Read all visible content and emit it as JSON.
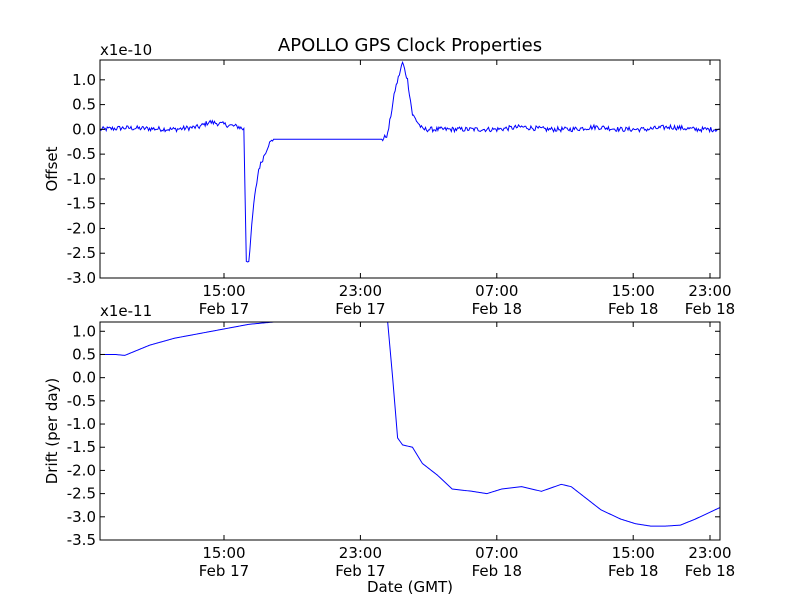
{
  "chart_data": [
    {
      "type": "line",
      "title": "APOLLO GPS Clock Properties",
      "ylabel": "Offset",
      "y_multiplier": "x1e-10",
      "xlabel": "",
      "ylim": [
        -3.0,
        1.4
      ],
      "xlim_hours": [
        11.5,
        24.0
      ],
      "y_ticks": [
        "1.0",
        "0.5",
        "0.0",
        "-0.5",
        "-1.0",
        "-1.5",
        "-2.0",
        "-2.5",
        "-3.0"
      ],
      "y_tick_values": [
        1.0,
        0.5,
        0.0,
        -0.5,
        -1.0,
        -1.5,
        -2.0,
        -2.5,
        -3.0
      ],
      "x_ticks": [
        {
          "hour": 14.0,
          "time": "15:00",
          "date": "Feb 17"
        },
        {
          "hour": 16.75,
          "time": "23:00",
          "date": "Feb 17"
        },
        {
          "hour": 19.5,
          "time": "07:00",
          "date": "Feb 18"
        },
        {
          "hour": 22.25,
          "time": "15:00",
          "date": "Feb 18"
        },
        {
          "hour": 25.0,
          "time": "23:00",
          "date": "Feb 18"
        }
      ],
      "line_color": "#0000ff",
      "noise_amplitude": 0.05,
      "series": [
        {
          "name": "offset",
          "x": [
            11.5,
            12.0,
            13.0,
            13.5,
            13.7,
            14.0,
            14.3,
            14.4,
            14.45,
            14.5,
            14.6,
            14.7,
            14.9,
            15.0,
            15.2,
            15.5,
            16.0,
            16.5,
            17.0,
            17.2,
            17.3,
            17.45,
            17.6,
            17.7,
            17.8,
            18.0,
            18.5,
            19.0,
            19.5,
            20.0,
            20.5,
            21.0,
            21.5,
            22.0,
            22.5,
            23.0,
            23.5,
            24.0
          ],
          "y": [
            0.0,
            0.03,
            0.0,
            0.05,
            0.15,
            0.1,
            0.05,
            0.0,
            -2.65,
            -2.65,
            -1.5,
            -0.8,
            -0.3,
            -0.2,
            -0.2,
            -0.2,
            -0.2,
            -0.2,
            -0.2,
            -0.2,
            -0.1,
            0.8,
            1.35,
            1.0,
            0.3,
            0.0,
            0.0,
            0.0,
            0.0,
            0.05,
            0.0,
            0.0,
            0.05,
            0.0,
            0.0,
            0.05,
            0.0,
            0.0
          ]
        }
      ]
    },
    {
      "type": "line",
      "title": "",
      "ylabel": "Drift (per day)",
      "y_multiplier": "x1e-11",
      "xlabel": "Date (GMT)",
      "ylim": [
        -3.5,
        1.2
      ],
      "xlim_hours": [
        11.5,
        24.0
      ],
      "y_ticks": [
        "1.0",
        "0.5",
        "0.0",
        "-0.5",
        "-1.0",
        "-1.5",
        "-2.0",
        "-2.5",
        "-3.0",
        "-3.5"
      ],
      "y_tick_values": [
        1.0,
        0.5,
        0.0,
        -0.5,
        -1.0,
        -1.5,
        -2.0,
        -2.5,
        -3.0,
        -3.5
      ],
      "x_ticks": [
        {
          "hour": 14.0,
          "time": "15:00",
          "date": "Feb 17"
        },
        {
          "hour": 16.75,
          "time": "23:00",
          "date": "Feb 17"
        },
        {
          "hour": 19.5,
          "time": "07:00",
          "date": "Feb 18"
        },
        {
          "hour": 22.25,
          "time": "15:00",
          "date": "Feb 18"
        },
        {
          "hour": 25.0,
          "time": "23:00",
          "date": "Feb 18"
        }
      ],
      "line_color": "#0000ff",
      "noise_amplitude": 0,
      "series": [
        {
          "name": "drift",
          "x": [
            11.5,
            11.8,
            12.0,
            12.5,
            13.0,
            13.5,
            14.0,
            14.5,
            15.0,
            15.5,
            16.0,
            16.5,
            17.0,
            17.2,
            17.3,
            17.4,
            17.5,
            17.6,
            17.8,
            18.0,
            18.3,
            18.6,
            19.0,
            19.3,
            19.6,
            20.0,
            20.4,
            20.8,
            21.0,
            21.3,
            21.6,
            22.0,
            22.3,
            22.6,
            22.9,
            23.2,
            23.5,
            23.8,
            24.0
          ],
          "y": [
            0.5,
            0.5,
            0.48,
            0.7,
            0.85,
            0.95,
            1.05,
            1.15,
            1.2,
            1.2,
            1.2,
            1.2,
            1.2,
            1.2,
            1.2,
            0.0,
            -1.3,
            -1.45,
            -1.5,
            -1.85,
            -2.1,
            -2.4,
            -2.45,
            -2.5,
            -2.4,
            -2.35,
            -2.45,
            -2.3,
            -2.35,
            -2.6,
            -2.85,
            -3.05,
            -3.15,
            -3.2,
            -3.2,
            -3.18,
            -3.05,
            -2.9,
            -2.8
          ]
        }
      ]
    }
  ]
}
